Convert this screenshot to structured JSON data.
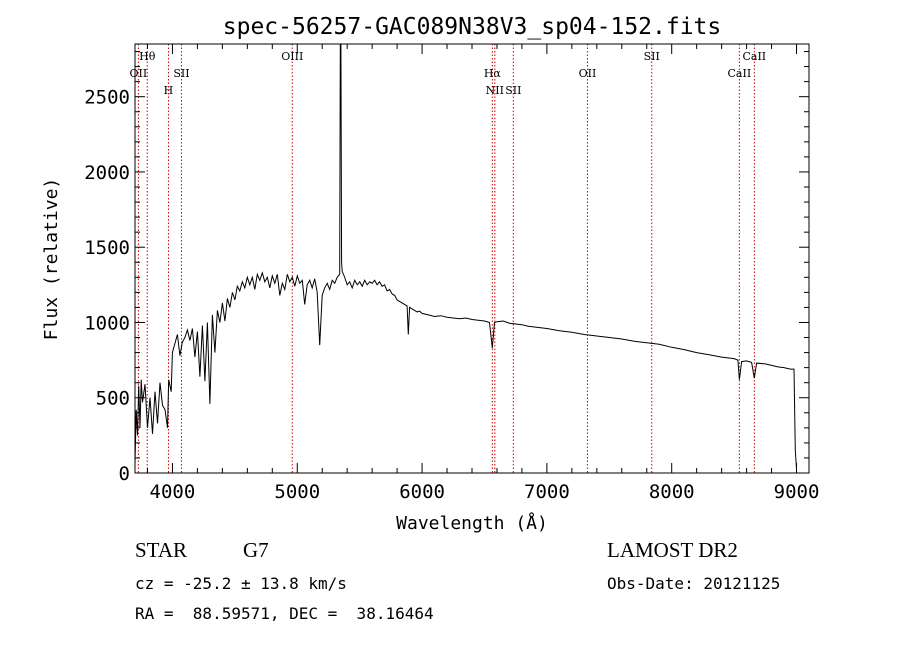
{
  "chart_data": {
    "type": "line",
    "title": "spec-56257-GAC089N38V3_sp04-152.fits",
    "xlabel": "Wavelength (Å)",
    "ylabel": "Flux (relative)",
    "xlim": [
      3700,
      9100
    ],
    "ylim": [
      0,
      2850
    ],
    "xticks": [
      4000,
      5000,
      6000,
      7000,
      8000,
      9000
    ],
    "yticks": [
      0,
      500,
      1000,
      1500,
      2000,
      2500
    ],
    "grid": false,
    "line_color": "#000000",
    "marker_color": "#cc0000",
    "lines": [
      {
        "label": "Hθ",
        "x": 3798,
        "row": 1
      },
      {
        "label": "OII",
        "x": 3727,
        "row": 2
      },
      {
        "label": "H",
        "x": 3968,
        "row": 3
      },
      {
        "label": "SII",
        "x": 4072,
        "row": 2
      },
      {
        "label": "OIII",
        "x": 4960,
        "row": 1
      },
      {
        "label": "Hα",
        "x": 6563,
        "row": 2
      },
      {
        "label": "NII",
        "x": 6583,
        "row": 3
      },
      {
        "label": "SII",
        "x": 6731,
        "row": 3
      },
      {
        "label": "OII",
        "x": 7325,
        "row": 2
      },
      {
        "label": "SII",
        "x": 7840,
        "row": 1
      },
      {
        "label": "CaII",
        "x": 8542,
        "row": 2
      },
      {
        "label": "CaII",
        "x": 8662,
        "row": 1
      }
    ],
    "spectrum": [
      [
        3700,
        60
      ],
      [
        3710,
        420
      ],
      [
        3720,
        250
      ],
      [
        3730,
        580
      ],
      [
        3740,
        300
      ],
      [
        3750,
        620
      ],
      [
        3760,
        470
      ],
      [
        3780,
        590
      ],
      [
        3800,
        300
      ],
      [
        3820,
        500
      ],
      [
        3840,
        260
      ],
      [
        3860,
        540
      ],
      [
        3880,
        330
      ],
      [
        3900,
        600
      ],
      [
        3920,
        450
      ],
      [
        3940,
        420
      ],
      [
        3960,
        300
      ],
      [
        3970,
        620
      ],
      [
        3990,
        540
      ],
      [
        4000,
        800
      ],
      [
        4020,
        860
      ],
      [
        4040,
        920
      ],
      [
        4060,
        780
      ],
      [
        4080,
        870
      ],
      [
        4100,
        900
      ],
      [
        4120,
        950
      ],
      [
        4140,
        880
      ],
      [
        4160,
        960
      ],
      [
        4180,
        770
      ],
      [
        4200,
        940
      ],
      [
        4220,
        640
      ],
      [
        4240,
        980
      ],
      [
        4260,
        610
      ],
      [
        4280,
        1000
      ],
      [
        4300,
        460
      ],
      [
        4320,
        1050
      ],
      [
        4340,
        800
      ],
      [
        4360,
        1080
      ],
      [
        4380,
        1000
      ],
      [
        4400,
        1130
      ],
      [
        4420,
        1010
      ],
      [
        4440,
        1160
      ],
      [
        4460,
        1100
      ],
      [
        4480,
        1200
      ],
      [
        4500,
        1150
      ],
      [
        4520,
        1240
      ],
      [
        4540,
        1210
      ],
      [
        4560,
        1270
      ],
      [
        4580,
        1230
      ],
      [
        4600,
        1300
      ],
      [
        4620,
        1250
      ],
      [
        4640,
        1300
      ],
      [
        4660,
        1220
      ],
      [
        4680,
        1320
      ],
      [
        4700,
        1280
      ],
      [
        4720,
        1330
      ],
      [
        4740,
        1270
      ],
      [
        4760,
        1300
      ],
      [
        4780,
        1230
      ],
      [
        4800,
        1310
      ],
      [
        4820,
        1260
      ],
      [
        4840,
        1320
      ],
      [
        4860,
        1180
      ],
      [
        4880,
        1260
      ],
      [
        4900,
        1220
      ],
      [
        4920,
        1320
      ],
      [
        4940,
        1270
      ],
      [
        4960,
        1300
      ],
      [
        4980,
        1240
      ],
      [
        5000,
        1310
      ],
      [
        5020,
        1260
      ],
      [
        5040,
        1280
      ],
      [
        5060,
        1120
      ],
      [
        5080,
        1250
      ],
      [
        5100,
        1280
      ],
      [
        5120,
        1230
      ],
      [
        5140,
        1290
      ],
      [
        5160,
        1200
      ],
      [
        5180,
        850
      ],
      [
        5200,
        1180
      ],
      [
        5220,
        1230
      ],
      [
        5240,
        1260
      ],
      [
        5260,
        1220
      ],
      [
        5280,
        1280
      ],
      [
        5300,
        1260
      ],
      [
        5320,
        1300
      ],
      [
        5340,
        1320
      ],
      [
        5345,
        2850
      ],
      [
        5350,
        2850
      ],
      [
        5355,
        1400
      ],
      [
        5360,
        1340
      ],
      [
        5380,
        1300
      ],
      [
        5400,
        1250
      ],
      [
        5420,
        1270
      ],
      [
        5440,
        1230
      ],
      [
        5460,
        1280
      ],
      [
        5480,
        1250
      ],
      [
        5500,
        1270
      ],
      [
        5520,
        1240
      ],
      [
        5540,
        1280
      ],
      [
        5560,
        1250
      ],
      [
        5580,
        1270
      ],
      [
        5600,
        1260
      ],
      [
        5620,
        1280
      ],
      [
        5640,
        1250
      ],
      [
        5660,
        1270
      ],
      [
        5680,
        1240
      ],
      [
        5700,
        1250
      ],
      [
        5720,
        1210
      ],
      [
        5740,
        1220
      ],
      [
        5760,
        1190
      ],
      [
        5780,
        1180
      ],
      [
        5800,
        1150
      ],
      [
        5820,
        1140
      ],
      [
        5840,
        1130
      ],
      [
        5860,
        1120
      ],
      [
        5880,
        1110
      ],
      [
        5890,
        920
      ],
      [
        5900,
        1100
      ],
      [
        5920,
        1090
      ],
      [
        5940,
        1080
      ],
      [
        5960,
        1070
      ],
      [
        5980,
        1075
      ],
      [
        6000,
        1060
      ],
      [
        6050,
        1050
      ],
      [
        6100,
        1040
      ],
      [
        6150,
        1045
      ],
      [
        6200,
        1035
      ],
      [
        6250,
        1030
      ],
      [
        6300,
        1025
      ],
      [
        6350,
        1030
      ],
      [
        6400,
        1020
      ],
      [
        6450,
        1015
      ],
      [
        6500,
        1010
      ],
      [
        6540,
        1000
      ],
      [
        6563,
        830
      ],
      [
        6580,
        1000
      ],
      [
        6600,
        1005
      ],
      [
        6650,
        1010
      ],
      [
        6700,
        995
      ],
      [
        6750,
        990
      ],
      [
        6800,
        985
      ],
      [
        6850,
        975
      ],
      [
        6900,
        970
      ],
      [
        6950,
        965
      ],
      [
        7000,
        960
      ],
      [
        7100,
        945
      ],
      [
        7200,
        935
      ],
      [
        7300,
        920
      ],
      [
        7400,
        910
      ],
      [
        7500,
        900
      ],
      [
        7600,
        890
      ],
      [
        7700,
        875
      ],
      [
        7800,
        865
      ],
      [
        7900,
        855
      ],
      [
        8000,
        835
      ],
      [
        8100,
        820
      ],
      [
        8200,
        800
      ],
      [
        8300,
        785
      ],
      [
        8400,
        770
      ],
      [
        8500,
        760
      ],
      [
        8530,
        750
      ],
      [
        8542,
        620
      ],
      [
        8560,
        740
      ],
      [
        8600,
        745
      ],
      [
        8640,
        735
      ],
      [
        8662,
        630
      ],
      [
        8680,
        730
      ],
      [
        8750,
        725
      ],
      [
        8800,
        715
      ],
      [
        8850,
        705
      ],
      [
        8900,
        700
      ],
      [
        8950,
        690
      ],
      [
        8980,
        690
      ],
      [
        8990,
        150
      ],
      [
        9000,
        30
      ]
    ]
  },
  "info": {
    "class_label": "STAR",
    "subclass_label": "G7",
    "survey_label": "LAMOST DR2",
    "cz_line": "cz = -25.2 ± 13.8 km/s",
    "obsdate_line": "Obs-Date: 20121125",
    "coord_line": "RA =  88.59571, DEC =  38.16464"
  }
}
